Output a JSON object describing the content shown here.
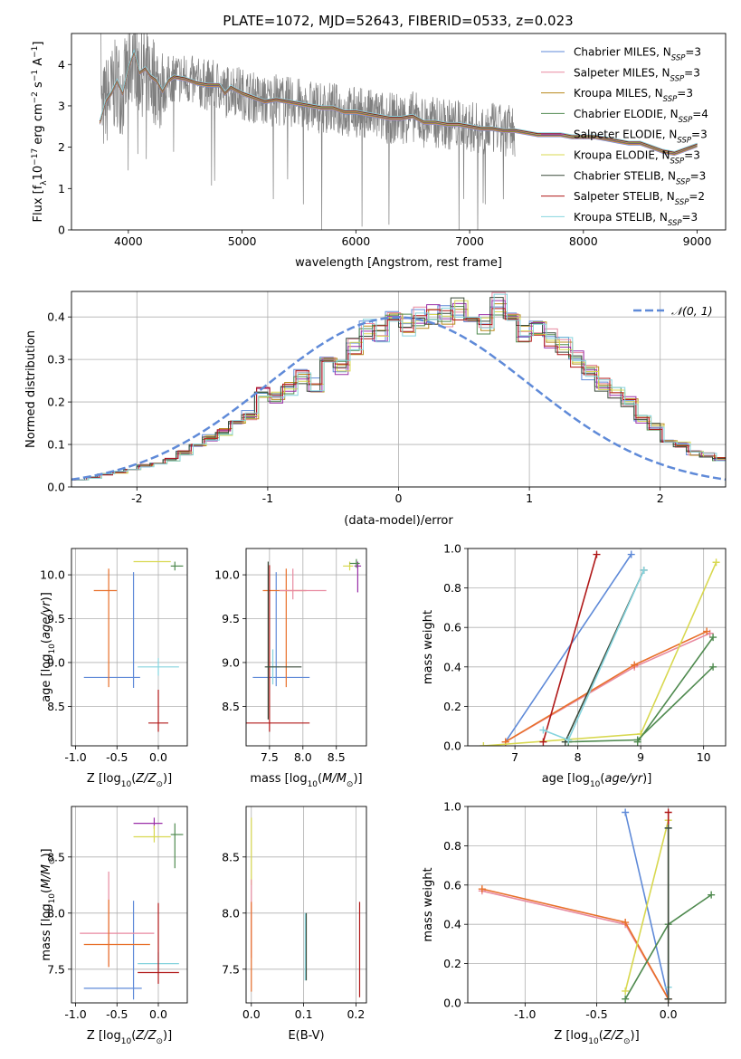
{
  "title": "PLATE=1072, MJD=52643, FIBERID=0533, z=0.023",
  "colors": {
    "Chabrier MILES": "#5f8ad8",
    "Salpeter MILES": "#e88aa0",
    "Kroupa MILES": "#b88a1c",
    "Chabrier ELODIE": "#4f8a4f",
    "Salpeter ELODIE": "#9a2fa8",
    "Kroupa ELODIE": "#d8d850",
    "Chabrier STELIB": "#3a4a3a",
    "Salpeter STELIB": "#b01818",
    "Kroupa STELIB": "#86d4de",
    "orange": "#e8702a",
    "data": "#7f7f7f"
  },
  "chart_data": [
    {
      "id": "spectrum",
      "type": "line",
      "xlabel": "wavelength [Angstrom, rest frame]",
      "ylabel": "Flux [f",
      "xlim": [
        3500,
        9250
      ],
      "ylim": [
        0,
        4.75
      ],
      "xticks": [
        4000,
        5000,
        6000,
        7000,
        8000,
        9000
      ],
      "yticks": [
        0,
        1,
        2,
        3,
        4
      ],
      "legend": "top-right",
      "series": [
        {
          "name": "Chabrier MILES",
          "nssp": "3"
        },
        {
          "name": "Salpeter MILES",
          "nssp": "3"
        },
        {
          "name": "Kroupa MILES",
          "nssp": "3"
        },
        {
          "name": "Chabrier ELODIE",
          "nssp": "4"
        },
        {
          "name": "Salpeter ELODIE",
          "nssp": "3"
        },
        {
          "name": "Kroupa ELODIE",
          "nssp": "3"
        },
        {
          "name": "Chabrier STELIB",
          "nssp": "3"
        },
        {
          "name": "Salpeter STELIB",
          "nssp": "2"
        },
        {
          "name": "Kroupa STELIB",
          "nssp": "3"
        }
      ],
      "model_curve": {
        "x": [
          3750,
          3800,
          3850,
          3900,
          3950,
          4000,
          4050,
          4100,
          4150,
          4200,
          4250,
          4300,
          4350,
          4400,
          4500,
          4600,
          4700,
          4800,
          4850,
          4900,
          5000,
          5100,
          5200,
          5300,
          5400,
          5500,
          5600,
          5700,
          5800,
          5900,
          6000,
          6100,
          6200,
          6300,
          6400,
          6500,
          6600,
          6700,
          6800,
          6900,
          7000,
          7100,
          7200,
          7300,
          7400,
          7500,
          7600,
          7700,
          7800,
          7900,
          8000,
          8100,
          8200,
          8300,
          8400,
          8500,
          8600,
          8700,
          8800,
          8900,
          9000
        ],
        "y": [
          2.6,
          3.1,
          3.3,
          3.6,
          3.3,
          3.9,
          4.3,
          3.8,
          3.9,
          3.7,
          3.6,
          3.35,
          3.6,
          3.7,
          3.65,
          3.55,
          3.5,
          3.5,
          3.3,
          3.45,
          3.3,
          3.2,
          3.1,
          3.15,
          3.1,
          3.05,
          3.0,
          2.95,
          2.95,
          2.85,
          2.85,
          2.8,
          2.75,
          2.7,
          2.7,
          2.75,
          2.6,
          2.6,
          2.55,
          2.55,
          2.5,
          2.45,
          2.45,
          2.4,
          2.4,
          2.35,
          2.3,
          2.3,
          2.3,
          2.25,
          2.25,
          2.25,
          2.2,
          2.15,
          2.1,
          2.1,
          2.0,
          1.9,
          1.85,
          1.95,
          2.05
        ]
      },
      "data_range": [
        3750,
        7400
      ]
    },
    {
      "id": "histogram",
      "type": "line",
      "xlabel": "(data-model)/error",
      "ylabel": "Normed distribution",
      "xlim": [
        -2.5,
        2.5
      ],
      "ylim": [
        0,
        0.46
      ],
      "xticks": [
        -2,
        -1,
        0,
        1,
        2
      ],
      "yticks": [
        0.0,
        0.1,
        0.2,
        0.3,
        0.4
      ],
      "legend": "top-right",
      "reference": {
        "name": "𝒩(0, 1)",
        "mu": 0,
        "sigma": 1
      },
      "bins": 50,
      "approx_values": [
        0.018,
        0.022,
        0.03,
        0.035,
        0.04,
        0.05,
        0.055,
        0.065,
        0.08,
        0.1,
        0.115,
        0.13,
        0.15,
        0.17,
        0.22,
        0.21,
        0.23,
        0.26,
        0.24,
        0.3,
        0.28,
        0.33,
        0.37,
        0.36,
        0.39,
        0.38,
        0.4,
        0.41,
        0.4,
        0.42,
        0.4,
        0.38,
        0.43,
        0.4,
        0.36,
        0.38,
        0.35,
        0.33,
        0.3,
        0.27,
        0.24,
        0.22,
        0.2,
        0.16,
        0.14,
        0.11,
        0.1,
        0.08,
        0.075,
        0.065
      ]
    },
    {
      "id": "age-vs-Z",
      "type": "scatter",
      "xlabel": "Z [log",
      "ylabel": "age  [log",
      "xlim": [
        -1.05,
        0.35
      ],
      "ylim": [
        8.05,
        10.3
      ],
      "xticks": [
        -1.0,
        -0.5,
        0.0
      ],
      "yticks": [
        8.5,
        9.0,
        9.5,
        10.0
      ],
      "points": [
        {
          "color": "Chabrier MILES",
          "x": -0.3,
          "y": 8.83,
          "xerr": [
            0.6,
            0.08
          ],
          "yerr": [
            0.12,
            1.2
          ]
        },
        {
          "color": "orange",
          "x": -0.6,
          "y": 9.82,
          "xerr": [
            0.18,
            0.1
          ],
          "yerr": [
            1.1,
            0.25
          ]
        },
        {
          "color": "Kroupa STELIB",
          "x": 0.0,
          "y": 8.95,
          "xerr": [
            0.25,
            0.25
          ],
          "yerr": [
            0.1,
            0.1
          ]
        },
        {
          "color": "Salpeter STELIB",
          "x": 0.0,
          "y": 8.31,
          "xerr": [
            0.12,
            0.12
          ],
          "yerr": [
            0.1,
            0.38
          ]
        },
        {
          "color": "Kroupa ELODIE",
          "x": -0.05,
          "y": 10.15,
          "xerr": [
            0.25,
            0.2
          ],
          "yerr": [
            0.0,
            0.0
          ]
        },
        {
          "color": "Chabrier ELODIE",
          "x": 0.2,
          "y": 10.1,
          "xerr": [
            0.05,
            0.1
          ],
          "yerr": [
            0.05,
            0.05
          ]
        }
      ]
    },
    {
      "id": "age-vs-mass",
      "type": "scatter",
      "xlabel": "mass [log",
      "ylabel": "",
      "xlim": [
        7.15,
        8.95
      ],
      "ylim": [
        8.05,
        10.3
      ],
      "xticks": [
        7.5,
        8.0,
        8.5
      ],
      "yticks": [
        8.5,
        9.0,
        9.5,
        10.0
      ],
      "points": [
        {
          "color": "Chabrier MILES",
          "x": 7.6,
          "y": 8.83,
          "xerr": [
            0.35,
            0.5
          ],
          "yerr": [
            0.1,
            1.2
          ]
        },
        {
          "color": "orange",
          "x": 7.75,
          "y": 9.82,
          "xerr": [
            0.35,
            0.3
          ],
          "yerr": [
            1.1,
            0.25
          ]
        },
        {
          "color": "Salpeter MILES",
          "x": 7.85,
          "y": 9.82,
          "xerr": [
            0.2,
            0.5
          ],
          "yerr": [
            0.1,
            0.25
          ]
        },
        {
          "color": "Kroupa STELIB",
          "x": 7.55,
          "y": 8.95,
          "xerr": [
            0.1,
            0.1
          ],
          "yerr": [
            0.2,
            0.2
          ]
        },
        {
          "color": "Salpeter STELIB",
          "x": 7.5,
          "y": 8.31,
          "xerr": [
            0.35,
            0.6
          ],
          "yerr": [
            0.1,
            1.8
          ]
        },
        {
          "color": "Chabrier STELIB",
          "x": 7.48,
          "y": 8.95,
          "xerr": [
            0.05,
            0.5
          ],
          "yerr": [
            0.6,
            1.2
          ]
        },
        {
          "color": "Kroupa ELODIE",
          "x": 8.7,
          "y": 10.1,
          "xerr": [
            0.1,
            0.05
          ],
          "yerr": [
            0.05,
            0.05
          ]
        },
        {
          "color": "Salpeter ELODIE",
          "x": 8.82,
          "y": 10.1,
          "xerr": [
            0.05,
            0.05
          ],
          "yerr": [
            0.3,
            0.05
          ]
        },
        {
          "color": "Chabrier ELODIE",
          "x": 8.8,
          "y": 10.13,
          "xerr": [
            0.1,
            0.05
          ],
          "yerr": [
            0.05,
            0.05
          ]
        }
      ]
    },
    {
      "id": "weight-vs-age",
      "type": "line",
      "xlabel": "age  [log",
      "ylabel": "mass weight",
      "xlim": [
        6.25,
        10.35
      ],
      "ylim": [
        0,
        1.0
      ],
      "xticks": [
        7,
        8,
        9,
        10
      ],
      "yticks": [
        0.0,
        0.2,
        0.4,
        0.6,
        0.8,
        1.0
      ],
      "series": [
        {
          "color": "Chabrier MILES",
          "x": [
            6.85,
            8.85
          ],
          "y": [
            0.02,
            0.97
          ]
        },
        {
          "color": "Salpeter MILES",
          "x": [
            6.85,
            8.9,
            10.1
          ],
          "y": [
            0.02,
            0.4,
            0.57
          ]
        },
        {
          "color": "orange",
          "x": [
            6.85,
            8.9,
            10.05
          ],
          "y": [
            0.02,
            0.41,
            0.58
          ]
        },
        {
          "color": "Chabrier ELODIE",
          "x": [
            7.85,
            8.95,
            10.15
          ],
          "y": [
            0.02,
            0.03,
            0.4
          ]
        },
        {
          "color": "Kroupa ELODIE",
          "x": [
            6.5,
            9.0,
            10.2
          ],
          "y": [
            0.0,
            0.06,
            0.93
          ]
        },
        {
          "color": "Chabrier STELIB",
          "x": [
            7.8,
            9.05
          ],
          "y": [
            0.02,
            0.89
          ]
        },
        {
          "color": "Salpeter STELIB",
          "x": [
            7.45,
            8.3
          ],
          "y": [
            0.02,
            0.97
          ]
        },
        {
          "color": "Kroupa STELIB",
          "x": [
            7.45,
            7.85,
            9.05
          ],
          "y": [
            0.08,
            0.03,
            0.89
          ]
        },
        {
          "color": "Chabrier ELODIE",
          "x": [
            8.95,
            10.15
          ],
          "y": [
            0.02,
            0.55
          ]
        }
      ]
    },
    {
      "id": "mass-vs-Z",
      "type": "scatter",
      "xlabel": "Z [log",
      "ylabel": "mass [log",
      "xlim": [
        -1.05,
        0.35
      ],
      "ylim": [
        7.2,
        8.95
      ],
      "xticks": [
        -1.0,
        -0.5,
        0.0
      ],
      "yticks": [
        7.5,
        8.0,
        8.5
      ],
      "points": [
        {
          "color": "Chabrier MILES",
          "x": -0.3,
          "y": 7.33,
          "xerr": [
            0.6,
            0.1
          ],
          "yerr": [
            0.1,
            0.78
          ]
        },
        {
          "color": "Salpeter MILES",
          "x": -0.6,
          "y": 7.82,
          "xerr": [
            0.35,
            0.55
          ],
          "yerr": [
            0.3,
            0.55
          ]
        },
        {
          "color": "orange",
          "x": -0.6,
          "y": 7.72,
          "xerr": [
            0.3,
            0.5
          ],
          "yerr": [
            0.2,
            0.4
          ]
        },
        {
          "color": "Kroupa STELIB",
          "x": 0.0,
          "y": 7.55,
          "xerr": [
            0.25,
            0.25
          ],
          "yerr": [
            0.1,
            0.1
          ]
        },
        {
          "color": "Salpeter STELIB",
          "x": 0.0,
          "y": 7.47,
          "xerr": [
            0.25,
            0.25
          ],
          "yerr": [
            0.1,
            0.62
          ]
        },
        {
          "color": "Salpeter ELODIE",
          "x": -0.05,
          "y": 8.8,
          "xerr": [
            0.25,
            0.1
          ],
          "yerr": [
            0.05,
            0.05
          ]
        },
        {
          "color": "Kroupa ELODIE",
          "x": -0.05,
          "y": 8.68,
          "xerr": [
            0.25,
            0.2
          ],
          "yerr": [
            0.05,
            0.1
          ]
        },
        {
          "color": "Chabrier ELODIE",
          "x": 0.2,
          "y": 8.7,
          "xerr": [
            0.05,
            0.1
          ],
          "yerr": [
            0.3,
            0.1
          ]
        }
      ]
    },
    {
      "id": "mass-vs-EBV",
      "type": "scatter",
      "xlabel": "E(B-V)",
      "ylabel": "",
      "xlim": [
        -0.01,
        0.22
      ],
      "ylim": [
        7.2,
        8.95
      ],
      "xticks": [
        0.0,
        0.1,
        0.2
      ],
      "yticks": [
        7.5,
        8.0,
        8.5
      ],
      "points": [
        {
          "color": "Kroupa ELODIE",
          "x": 0.0,
          "y": 8.55,
          "xerr": [
            0,
            0
          ],
          "yerr": [
            0.3,
            0.3
          ]
        },
        {
          "color": "Salpeter MILES",
          "x": 0.0,
          "y": 8.0,
          "xerr": [
            0,
            0
          ],
          "yerr": [
            0.4,
            0.3
          ]
        },
        {
          "color": "orange",
          "x": 0.0,
          "y": 7.7,
          "xerr": [
            0,
            0
          ],
          "yerr": [
            0.4,
            0.4
          ]
        },
        {
          "color": "Kroupa STELIB",
          "x": 0.103,
          "y": 7.7,
          "xerr": [
            0,
            0
          ],
          "yerr": [
            0.3,
            0.3
          ]
        },
        {
          "color": "Chabrier STELIB",
          "x": 0.105,
          "y": 7.7,
          "xerr": [
            0,
            0
          ],
          "yerr": [
            0.3,
            0.3
          ]
        },
        {
          "color": "Salpeter STELIB",
          "x": 0.207,
          "y": 7.65,
          "xerr": [
            0,
            0
          ],
          "yerr": [
            0.4,
            0.45
          ]
        }
      ]
    },
    {
      "id": "weight-vs-Z",
      "type": "line",
      "xlabel": "Z [log",
      "ylabel": "mass weight",
      "xlim": [
        -1.4,
        0.4
      ],
      "ylim": [
        0,
        1.0
      ],
      "xticks": [
        -1.0,
        -0.5,
        0.0
      ],
      "yticks": [
        0.0,
        0.2,
        0.4,
        0.6,
        0.8,
        1.0
      ],
      "series": [
        {
          "color": "Chabrier MILES",
          "x": [
            -0.3,
            0.0
          ],
          "y": [
            0.97,
            0.02
          ]
        },
        {
          "color": "Salpeter MILES",
          "x": [
            -1.3,
            -0.3,
            0.0
          ],
          "y": [
            0.57,
            0.4,
            0.02
          ]
        },
        {
          "color": "orange",
          "x": [
            -1.3,
            -0.3,
            0.0
          ],
          "y": [
            0.58,
            0.41,
            0.02
          ]
        },
        {
          "color": "Chabrier ELODIE",
          "x": [
            -0.3,
            0.0,
            0.3
          ],
          "y": [
            0.02,
            0.4,
            0.55
          ]
        },
        {
          "color": "Kroupa ELODIE",
          "x": [
            -0.3,
            0.0
          ],
          "y": [
            0.06,
            0.93
          ]
        },
        {
          "color": "Salpeter STELIB",
          "x": [
            0.0,
            0.0
          ],
          "y": [
            0.02,
            0.97
          ]
        },
        {
          "color": "Kroupa STELIB",
          "x": [
            0.0,
            0.0
          ],
          "y": [
            0.08,
            0.89
          ]
        },
        {
          "color": "Chabrier STELIB",
          "x": [
            0.0,
            0.0
          ],
          "y": [
            0.02,
            0.89
          ]
        }
      ]
    }
  ]
}
